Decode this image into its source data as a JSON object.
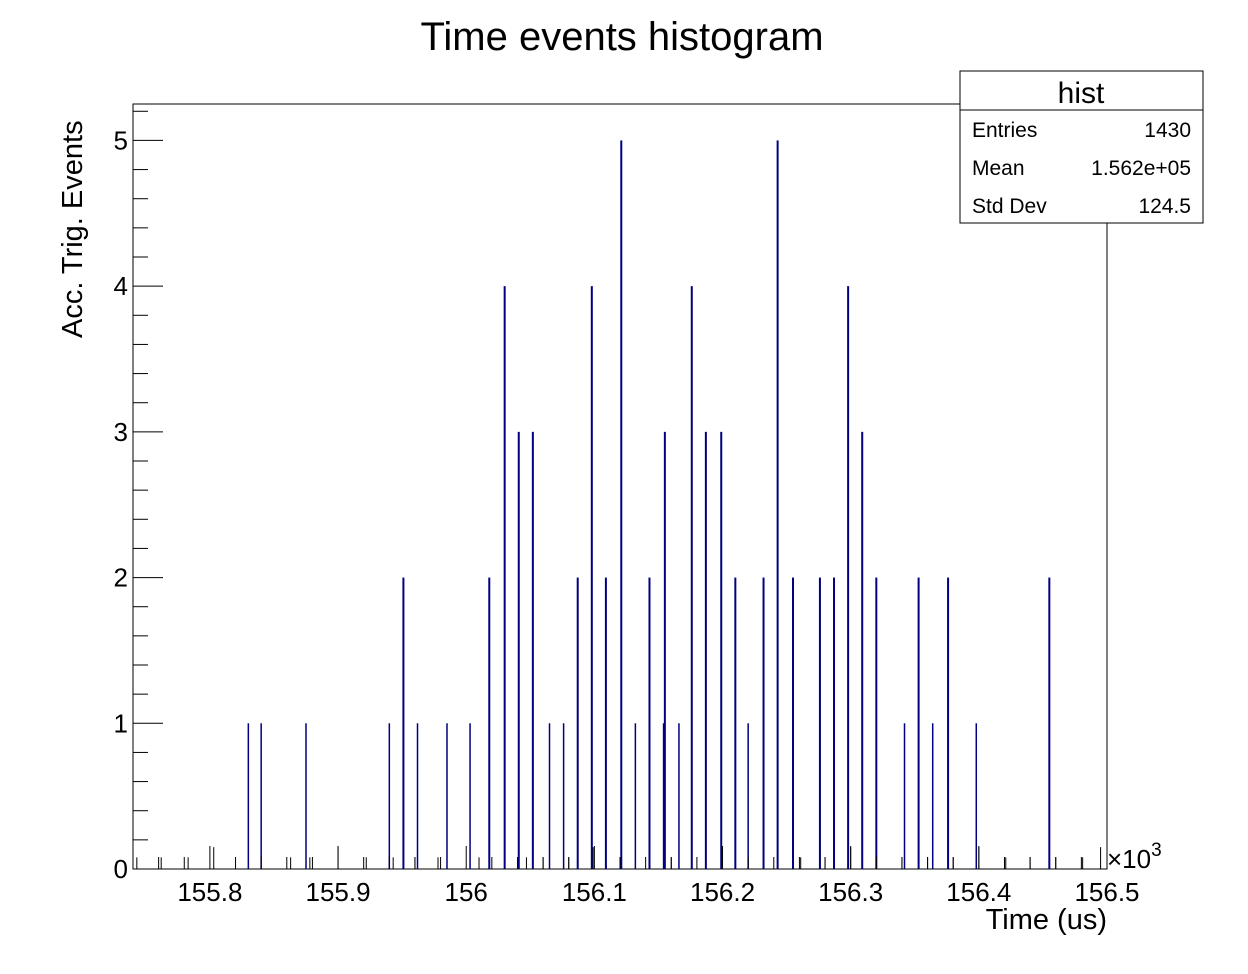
{
  "chart_data": {
    "type": "bar",
    "title": "Time events histogram",
    "xlabel": "Time (us)",
    "ylabel": "Acc. Trig. Events",
    "x_multiplier_label": "×10",
    "x_multiplier_exponent": "3",
    "xlim": [
      155.74,
      156.5
    ],
    "ylim": [
      0,
      5.25
    ],
    "x_ticks": [
      "155.8",
      "155.9",
      "156",
      "156.1",
      "156.2",
      "156.3",
      "156.4",
      "156.5"
    ],
    "y_ticks": [
      "0",
      "1",
      "2",
      "3",
      "4",
      "5"
    ],
    "bar_color": "#000080",
    "stats_box": {
      "title": "hist",
      "rows": [
        {
          "label": "Entries",
          "value": "1430"
        },
        {
          "label": "Mean",
          "value": "1.562e+05"
        },
        {
          "label": "Std Dev",
          "value": "124.5"
        }
      ]
    },
    "bins": [
      {
        "x": 155.743,
        "y": 0.08
      },
      {
        "x": 155.762,
        "y": 0.08
      },
      {
        "x": 155.783,
        "y": 0.08
      },
      {
        "x": 155.803,
        "y": 0.15
      },
      {
        "x": 155.83,
        "y": 1
      },
      {
        "x": 155.84,
        "y": 1
      },
      {
        "x": 155.863,
        "y": 0.08
      },
      {
        "x": 155.875,
        "y": 1
      },
      {
        "x": 155.878,
        "y": 0.08
      },
      {
        "x": 155.9,
        "y": 0.15
      },
      {
        "x": 155.922,
        "y": 0.08
      },
      {
        "x": 155.94,
        "y": 1
      },
      {
        "x": 155.943,
        "y": 0.08
      },
      {
        "x": 155.951,
        "y": 2
      },
      {
        "x": 155.962,
        "y": 1
      },
      {
        "x": 155.96,
        "y": 0.08
      },
      {
        "x": 155.978,
        "y": 0.08
      },
      {
        "x": 155.985,
        "y": 1
      },
      {
        "x": 156.003,
        "y": 1
      },
      {
        "x": 156.01,
        "y": 0.08
      },
      {
        "x": 156.018,
        "y": 2
      },
      {
        "x": 156.03,
        "y": 4
      },
      {
        "x": 156.041,
        "y": 3
      },
      {
        "x": 156.052,
        "y": 3
      },
      {
        "x": 156.047,
        "y": 0.08
      },
      {
        "x": 156.065,
        "y": 1
      },
      {
        "x": 156.06,
        "y": 0.08
      },
      {
        "x": 156.076,
        "y": 1
      },
      {
        "x": 156.08,
        "y": 0.08
      },
      {
        "x": 156.087,
        "y": 2
      },
      {
        "x": 156.098,
        "y": 4
      },
      {
        "x": 156.099,
        "y": 0.15
      },
      {
        "x": 156.109,
        "y": 2
      },
      {
        "x": 156.121,
        "y": 1
      },
      {
        "x": 156.121,
        "y": 5
      },
      {
        "x": 156.132,
        "y": 1
      },
      {
        "x": 156.143,
        "y": 1
      },
      {
        "x": 156.143,
        "y": 2
      },
      {
        "x": 156.154,
        "y": 1
      },
      {
        "x": 156.155,
        "y": 3
      },
      {
        "x": 156.16,
        "y": 0.08
      },
      {
        "x": 156.166,
        "y": 1
      },
      {
        "x": 156.176,
        "y": 4
      },
      {
        "x": 156.187,
        "y": 3
      },
      {
        "x": 156.199,
        "y": 3
      },
      {
        "x": 156.21,
        "y": 2
      },
      {
        "x": 156.22,
        "y": 1
      },
      {
        "x": 156.232,
        "y": 2
      },
      {
        "x": 156.243,
        "y": 5
      },
      {
        "x": 156.255,
        "y": 2
      },
      {
        "x": 156.261,
        "y": 0.08
      },
      {
        "x": 156.276,
        "y": 2
      },
      {
        "x": 156.28,
        "y": 0.08
      },
      {
        "x": 156.287,
        "y": 2
      },
      {
        "x": 156.298,
        "y": 4
      },
      {
        "x": 156.3,
        "y": 0.15
      },
      {
        "x": 156.309,
        "y": 3
      },
      {
        "x": 156.32,
        "y": 2
      },
      {
        "x": 156.342,
        "y": 1
      },
      {
        "x": 156.34,
        "y": 0.08
      },
      {
        "x": 156.353,
        "y": 2
      },
      {
        "x": 156.364,
        "y": 1
      },
      {
        "x": 156.36,
        "y": 0.08
      },
      {
        "x": 156.376,
        "y": 2
      },
      {
        "x": 156.38,
        "y": 0.08
      },
      {
        "x": 156.398,
        "y": 1
      },
      {
        "x": 156.4,
        "y": 0.15
      },
      {
        "x": 156.421,
        "y": 0.08
      },
      {
        "x": 156.44,
        "y": 0.08
      },
      {
        "x": 156.455,
        "y": 2
      },
      {
        "x": 156.46,
        "y": 0.08
      },
      {
        "x": 156.481,
        "y": 0.08
      },
      {
        "x": 156.495,
        "y": 0.15
      }
    ]
  }
}
